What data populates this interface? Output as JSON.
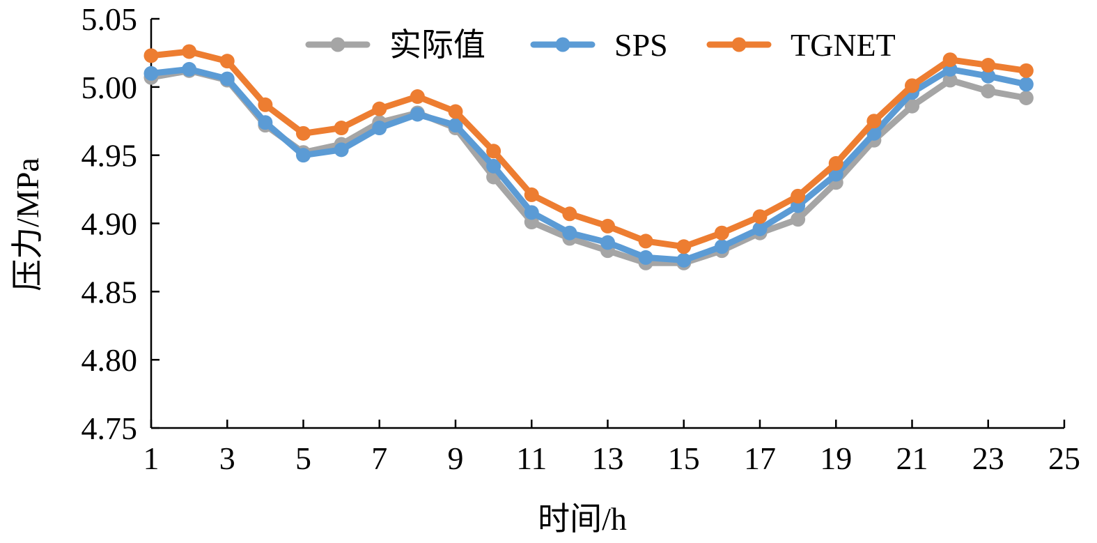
{
  "chart_data": {
    "type": "line",
    "xlabel": "时间/h",
    "ylabel": "压力/MPa",
    "xlim": [
      1,
      25
    ],
    "ylim": [
      4.75,
      5.05
    ],
    "x_ticks": [
      1,
      3,
      5,
      7,
      9,
      11,
      13,
      15,
      17,
      19,
      21,
      23,
      25
    ],
    "y_ticks": [
      "4.75",
      "4.80",
      "4.85",
      "4.90",
      "4.95",
      "5.00",
      "5.05"
    ],
    "grid": false,
    "legend_position": "top",
    "x": [
      1,
      2,
      3,
      4,
      5,
      6,
      7,
      8,
      9,
      10,
      11,
      12,
      13,
      14,
      15,
      16,
      17,
      18,
      19,
      20,
      21,
      22,
      23,
      24
    ],
    "series": [
      {
        "name": "实际值",
        "color": "#a5a5a5",
        "values": [
          5.007,
          5.012,
          5.005,
          4.972,
          4.952,
          4.958,
          4.974,
          4.981,
          4.97,
          4.934,
          4.901,
          4.889,
          4.88,
          4.871,
          4.871,
          4.88,
          4.893,
          4.903,
          4.93,
          4.961,
          4.986,
          5.005,
          4.997,
          4.992
        ]
      },
      {
        "name": "SPS",
        "color": "#5b9bd5",
        "values": [
          5.01,
          5.013,
          5.006,
          4.974,
          4.95,
          4.954,
          4.97,
          4.98,
          4.972,
          4.942,
          4.908,
          4.893,
          4.886,
          4.875,
          4.873,
          4.883,
          4.896,
          4.913,
          4.936,
          4.966,
          4.996,
          5.013,
          5.008,
          5.002
        ]
      },
      {
        "name": "TGNET",
        "color": "#ed7d31",
        "values": [
          5.023,
          5.026,
          5.019,
          4.987,
          4.966,
          4.97,
          4.984,
          4.993,
          4.982,
          4.953,
          4.921,
          4.907,
          4.898,
          4.887,
          4.883,
          4.893,
          4.905,
          4.92,
          4.944,
          4.975,
          5.001,
          5.02,
          5.016,
          5.012
        ]
      }
    ]
  }
}
